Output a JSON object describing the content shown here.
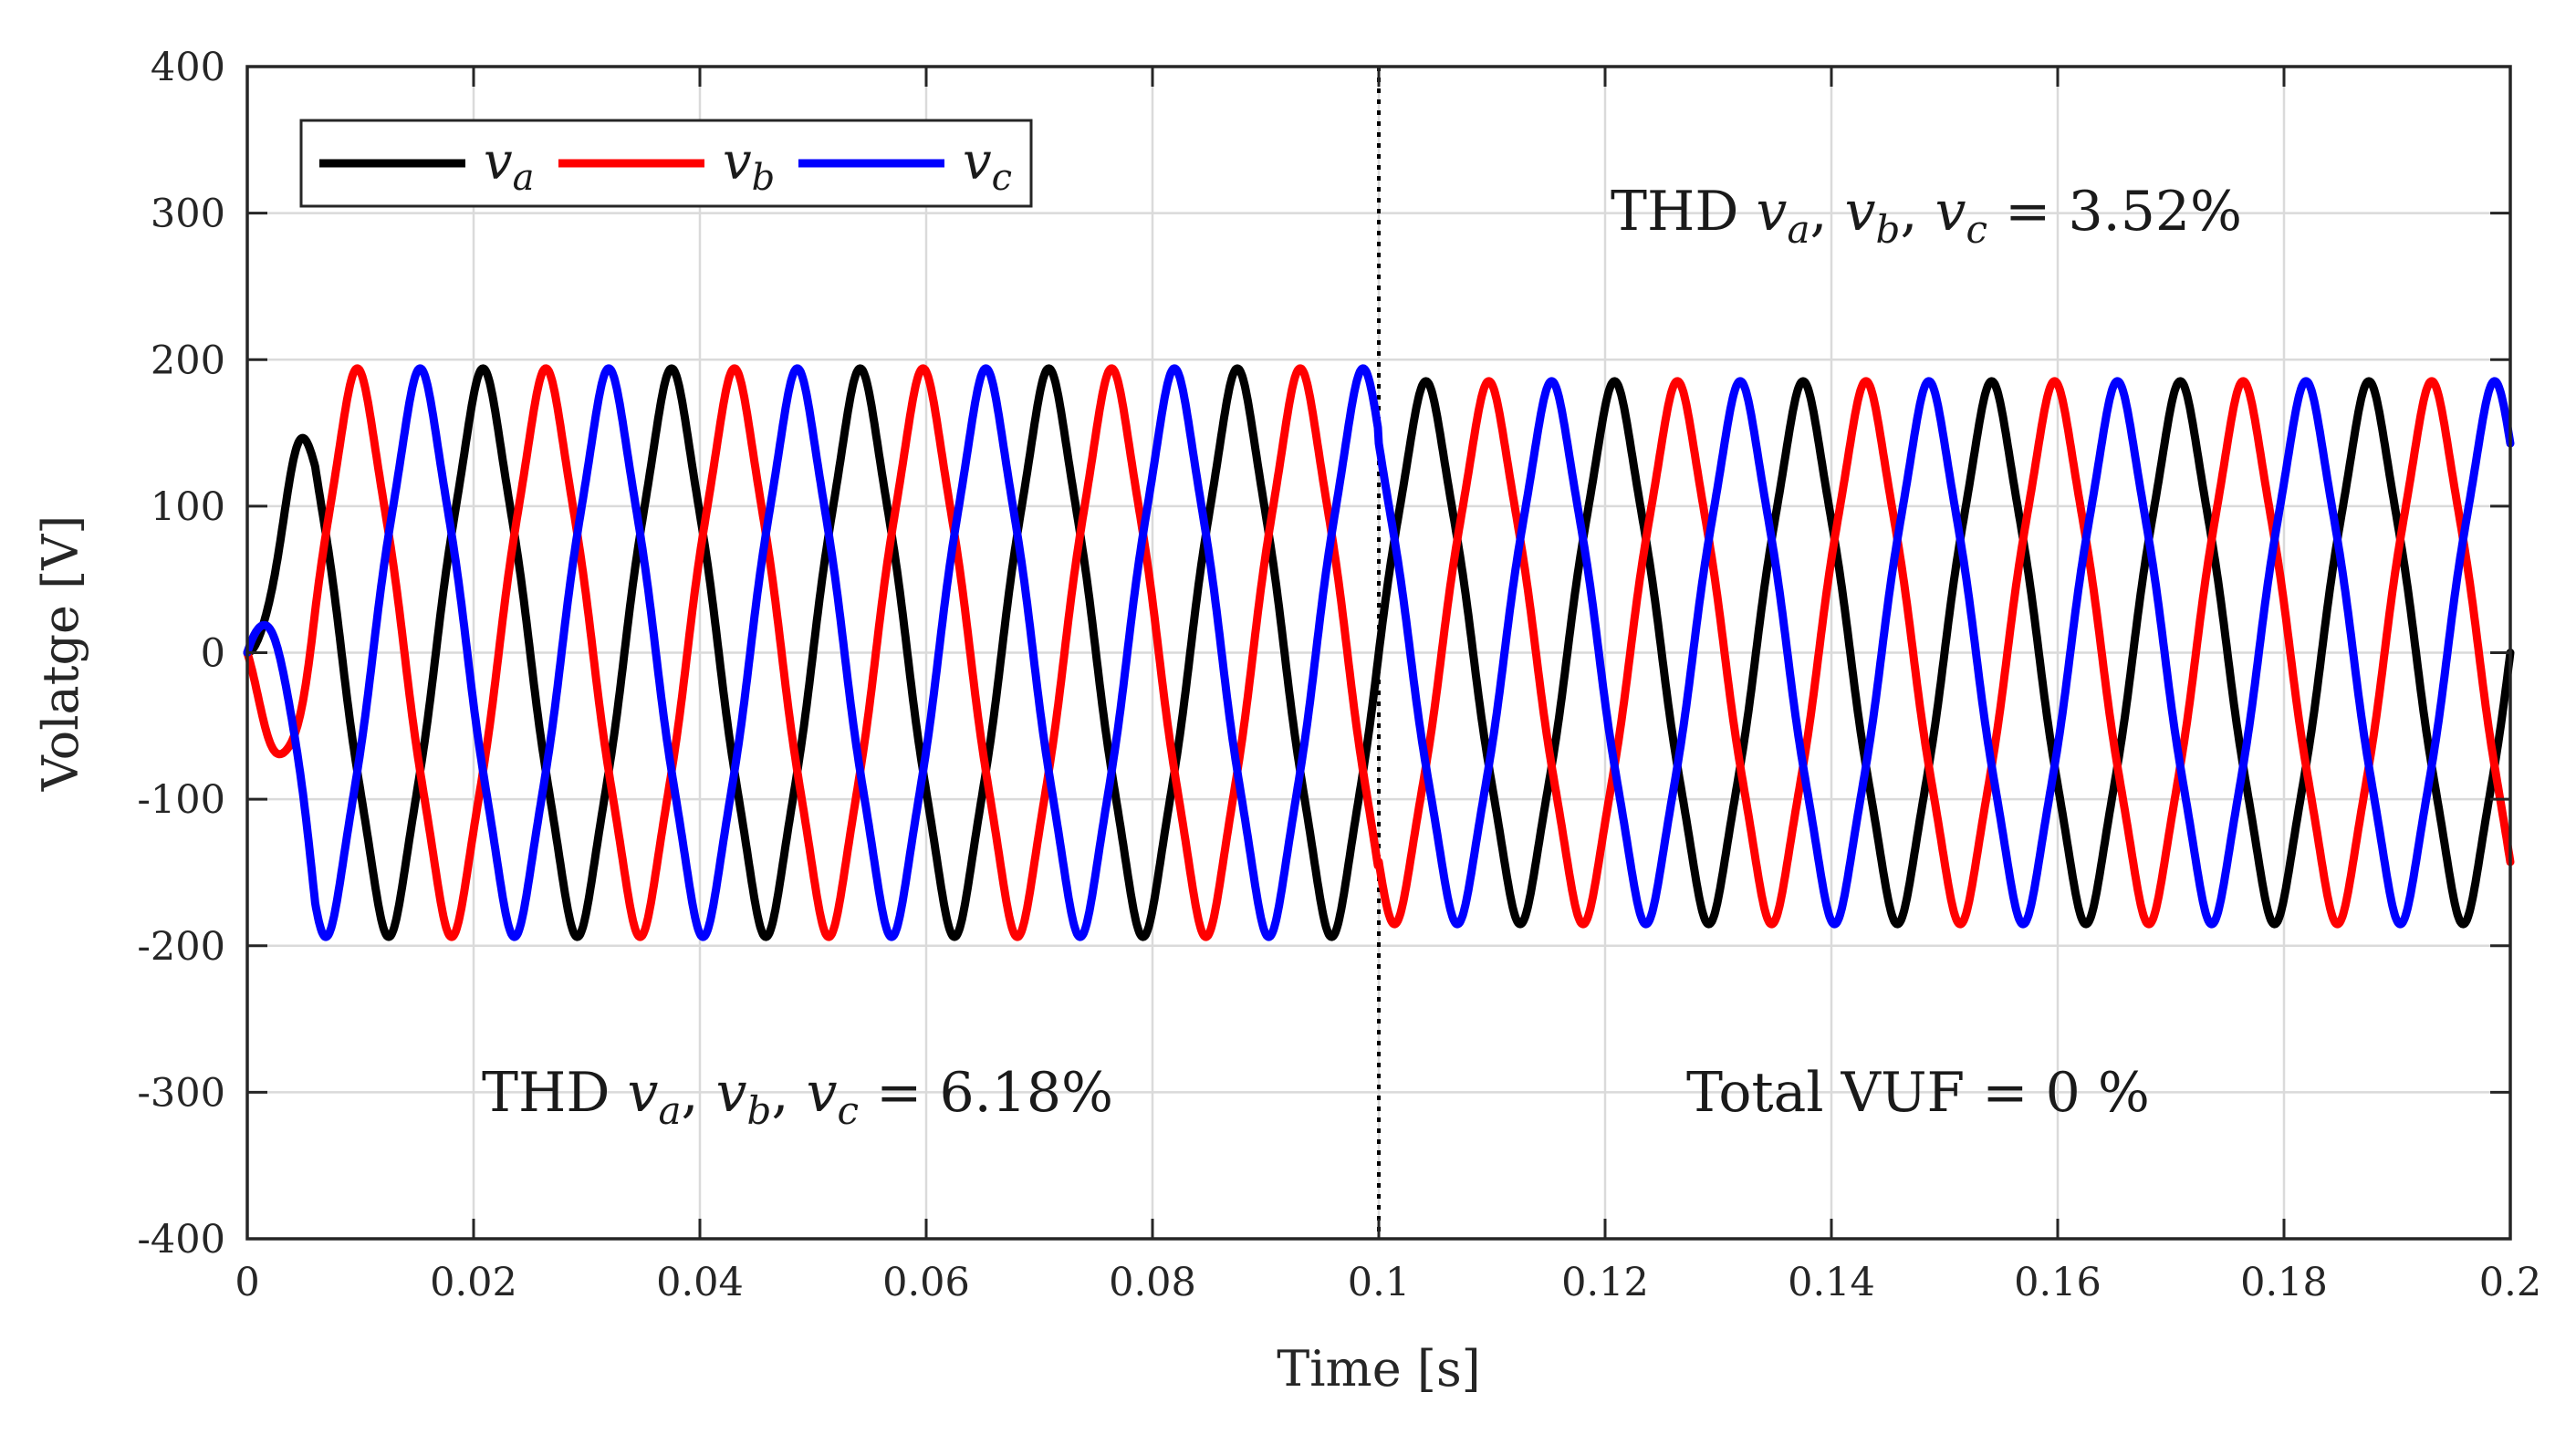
{
  "chart_data": {
    "type": "line",
    "title": "",
    "xlabel": "Time [s]",
    "ylabel": "Volatge [V]",
    "xlim": [
      0,
      0.2
    ],
    "ylim": [
      -400,
      400
    ],
    "grid": true,
    "legend_position": "top-left",
    "x_ticks": [
      0,
      0.02,
      0.04,
      0.06,
      0.08,
      0.1,
      0.12,
      0.14,
      0.16,
      0.18,
      0.2
    ],
    "x_tick_labels": [
      "0",
      "0.02",
      "0.04",
      "0.06",
      "0.08",
      "0.1",
      "0.12",
      "0.14",
      "0.16",
      "0.18",
      "0.2"
    ],
    "y_ticks": [
      400,
      300,
      200,
      100,
      0,
      -100,
      -200,
      -300,
      -400
    ],
    "y_tick_labels": [
      "400",
      "300",
      "200",
      "100",
      "0",
      "-100",
      "-200",
      "-300",
      "-400"
    ],
    "frequency_hz": 60,
    "event_time_s": 0.1,
    "series": [
      {
        "name": "v_a",
        "symbol": "v",
        "subscript": "a",
        "color": "#000000",
        "phase_deg": 0,
        "amplitude_before_event_V": 178,
        "amplitude_after_event_V": 170
      },
      {
        "name": "v_b",
        "symbol": "v",
        "subscript": "b",
        "color": "#ff0000",
        "phase_deg": -120,
        "amplitude_before_event_V": 178,
        "amplitude_after_event_V": 170
      },
      {
        "name": "v_c",
        "symbol": "v",
        "subscript": "c",
        "color": "#0000ff",
        "phase_deg": 120,
        "amplitude_before_event_V": 178,
        "amplitude_after_event_V": 170
      }
    ],
    "annotations": {
      "thd_before": {
        "prefix": "THD ",
        "vars": [
          "v",
          "a",
          "v",
          "b",
          "v",
          "c"
        ],
        "suffix": " = 6.18%"
      },
      "thd_after": {
        "prefix": "THD ",
        "vars": [
          "v",
          "a",
          "v",
          "b",
          "v",
          "c"
        ],
        "suffix": " = 3.52%"
      },
      "vuf_after": {
        "text": "Total VUF = 0 %"
      }
    }
  }
}
